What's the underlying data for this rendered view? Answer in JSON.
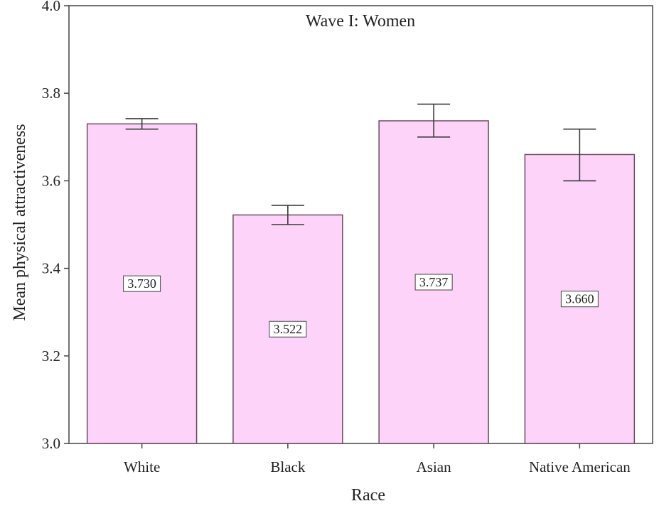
{
  "chart_data": {
    "type": "bar",
    "title": "Wave I:  Women",
    "xlabel": "Race",
    "ylabel": "Mean physical attractiveness",
    "categories": [
      "White",
      "Black",
      "Asian",
      "Native American"
    ],
    "values": [
      3.73,
      3.522,
      3.737,
      3.66
    ],
    "value_labels": [
      "3.730",
      "3.522",
      "3.737",
      "3.660"
    ],
    "error_bars": [
      {
        "low": 3.718,
        "high": 3.742
      },
      {
        "low": 3.5,
        "high": 3.544
      },
      {
        "low": 3.7,
        "high": 3.775
      },
      {
        "low": 3.6,
        "high": 3.718
      }
    ],
    "ylim": [
      3.0,
      4.0
    ],
    "yticks": [
      3.0,
      3.2,
      3.4,
      3.6,
      3.8,
      4.0
    ],
    "ytick_labels": [
      "3.0",
      "3.2",
      "3.4",
      "3.6",
      "3.8",
      "4.0"
    ],
    "grid": false,
    "colors": {
      "bar_fill": "#fdd3f9",
      "bar_stroke": "#6a4a5e",
      "axis": "#444444",
      "label_box": "#ffffff"
    }
  }
}
